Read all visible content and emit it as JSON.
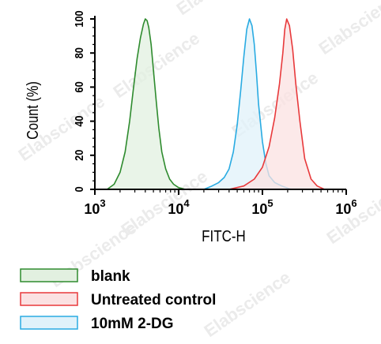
{
  "chart_data": {
    "type": "area",
    "title": "",
    "xlabel": "FITC-H",
    "ylabel": "Count (%)",
    "x_scale": "log",
    "xlim": [
      1000,
      1000000
    ],
    "ylim": [
      0,
      100
    ],
    "x_ticks": [
      {
        "value": 1000,
        "base": "10",
        "exp": "3"
      },
      {
        "value": 10000,
        "base": "10",
        "exp": "4"
      },
      {
        "value": 100000,
        "base": "10",
        "exp": "5"
      },
      {
        "value": 1000000,
        "base": "10",
        "exp": "6"
      }
    ],
    "y_ticks": [
      "0",
      "20",
      "40",
      "60",
      "80",
      "100"
    ],
    "legend_position": "bottom",
    "series": [
      {
        "name": "blank",
        "stroke": "#2e8b2e",
        "fill": "#e2f0e0",
        "x": [
          1400,
          1700,
          2000,
          2300,
          2600,
          2900,
          3200,
          3500,
          3800,
          4000,
          4200,
          4400,
          4700,
          5000,
          5400,
          5800,
          6300,
          7000,
          7800,
          8700,
          10000,
          12000
        ],
        "y": [
          0,
          3,
          10,
          22,
          40,
          60,
          77,
          89,
          97,
          100,
          99,
          95,
          85,
          70,
          52,
          36,
          22,
          12,
          6,
          3,
          1,
          0
        ]
      },
      {
        "name": "10mM 2-DG",
        "stroke": "#29abe2",
        "fill": "#e0f2fa",
        "x": [
          20000,
          25000,
          30000,
          35000,
          40000,
          45000,
          50000,
          55000,
          60000,
          65000,
          70000,
          75000,
          80000,
          85000,
          90000,
          100000,
          110000,
          120000,
          140000,
          170000,
          220000
        ],
        "y": [
          0,
          2,
          4,
          7,
          12,
          22,
          38,
          58,
          78,
          94,
          100,
          96,
          85,
          68,
          50,
          28,
          15,
          8,
          4,
          2,
          0
        ]
      },
      {
        "name": "Untreated control",
        "stroke": "#e8393b",
        "fill": "#fbe1e2",
        "x": [
          40000,
          60000,
          80000,
          100000,
          120000,
          140000,
          160000,
          175000,
          185000,
          195000,
          210000,
          230000,
          250000,
          280000,
          320000,
          380000,
          450000,
          550000
        ],
        "y": [
          0,
          2,
          6,
          13,
          25,
          42,
          62,
          80,
          94,
          100,
          96,
          82,
          62,
          40,
          18,
          6,
          2,
          0
        ]
      }
    ]
  },
  "legend": {
    "items": [
      {
        "label": "blank",
        "stroke": "#2e8b2e",
        "fill": "#e2f0e0"
      },
      {
        "label": "Untreated control",
        "stroke": "#e8393b",
        "fill": "#fbe1e2"
      },
      {
        "label": "10mM 2-DG",
        "stroke": "#29abe2",
        "fill": "#e0f2fa"
      }
    ]
  },
  "watermark": {
    "text": "Elabscience",
    "color": "#ebebeb"
  }
}
